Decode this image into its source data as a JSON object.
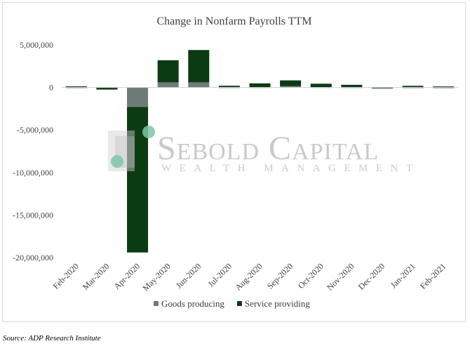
{
  "chart_data": {
    "type": "bar",
    "stacked": true,
    "title": "Change in Nonfarm Payrolls TTM",
    "categories": [
      "Feb-2020",
      "Mar-2020",
      "Apr-2020",
      "May-2020",
      "Jun-2020",
      "Jul-2020",
      "Aug-2020",
      "Sep-2020",
      "Oct-2020",
      "Nov-2020",
      "Dec-2020",
      "Jan-2021",
      "Feb-2021"
    ],
    "series": [
      {
        "name": "Goods producing",
        "color": "#6e7b79",
        "values": [
          20000,
          -30000,
          -2300000,
          600000,
          600000,
          30000,
          40000,
          150000,
          50000,
          40000,
          0,
          20000,
          10000
        ]
      },
      {
        "name": "Service providing",
        "color": "#0b3b12",
        "values": [
          110000,
          -220000,
          -17100000,
          2600000,
          3800000,
          170000,
          440000,
          680000,
          390000,
          270000,
          -120000,
          170000,
          110000
        ]
      }
    ],
    "ylim": [
      -20000000,
      5000000
    ],
    "yticks": [
      5000000,
      0,
      -5000000,
      -10000000,
      -15000000,
      -20000000
    ],
    "ytick_labels": [
      "5,000,000",
      "0",
      "-5,000,000",
      "-10,000,000",
      "-15,000,000",
      "-20,000,000"
    ],
    "xlabel": "",
    "ylabel": "",
    "grid": false,
    "legend_position": "bottom"
  },
  "watermark": {
    "line1": "Sebold Capital",
    "line2": "Wealth Management"
  },
  "source": "Source: ADP Research Institute"
}
